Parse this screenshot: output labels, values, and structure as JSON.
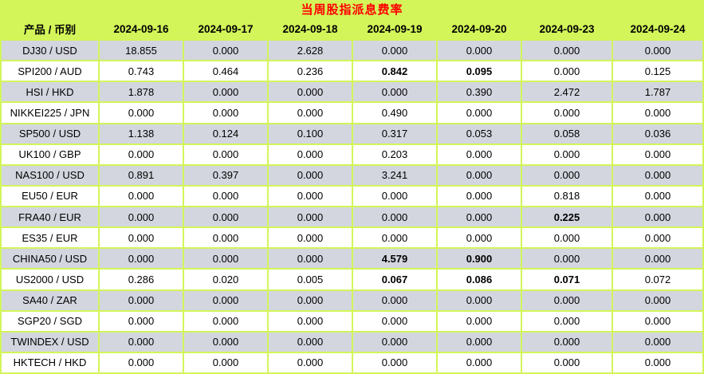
{
  "title": "当周股指派息费率",
  "colors": {
    "background": "#d3f559",
    "row_base": "#ffffff",
    "row_alt": "#d3d6df",
    "title_text": "#ff0000",
    "text": "#000000"
  },
  "table": {
    "corner_header": "产品 / 币别",
    "date_headers": [
      "2024-09-16",
      "2024-09-17",
      "2024-09-18",
      "2024-09-19",
      "2024-09-20",
      "2024-09-23",
      "2024-09-24"
    ],
    "rows": [
      {
        "product": "DJ30 / USD",
        "values": [
          "18.855",
          "0.000",
          "2.628",
          "0.000",
          "0.000",
          "0.000",
          "0.000"
        ],
        "bold_cols": []
      },
      {
        "product": "SPI200 / AUD",
        "values": [
          "0.743",
          "0.464",
          "0.236",
          "0.842",
          "0.095",
          "0.000",
          "0.125"
        ],
        "bold_cols": [
          3,
          4
        ]
      },
      {
        "product": "HSI / HKD",
        "values": [
          "1.878",
          "0.000",
          "0.000",
          "0.000",
          "0.390",
          "2.472",
          "1.787"
        ],
        "bold_cols": []
      },
      {
        "product": "NIKKEI225 / JPN",
        "values": [
          "0.000",
          "0.000",
          "0.000",
          "0.490",
          "0.000",
          "0.000",
          "0.000"
        ],
        "bold_cols": []
      },
      {
        "product": "SP500 / USD",
        "values": [
          "1.138",
          "0.124",
          "0.100",
          "0.317",
          "0.053",
          "0.058",
          "0.036"
        ],
        "bold_cols": []
      },
      {
        "product": "UK100 / GBP",
        "values": [
          "0.000",
          "0.000",
          "0.000",
          "0.203",
          "0.000",
          "0.000",
          "0.000"
        ],
        "bold_cols": []
      },
      {
        "product": "NAS100 / USD",
        "values": [
          "0.891",
          "0.397",
          "0.000",
          "3.241",
          "0.000",
          "0.000",
          "0.000"
        ],
        "bold_cols": []
      },
      {
        "product": "EU50 / EUR",
        "values": [
          "0.000",
          "0.000",
          "0.000",
          "0.000",
          "0.000",
          "0.818",
          "0.000"
        ],
        "bold_cols": []
      },
      {
        "product": "FRA40 / EUR",
        "values": [
          "0.000",
          "0.000",
          "0.000",
          "0.000",
          "0.000",
          "0.225",
          "0.000"
        ],
        "bold_cols": [
          5
        ]
      },
      {
        "product": "ES35 / EUR",
        "values": [
          "0.000",
          "0.000",
          "0.000",
          "0.000",
          "0.000",
          "0.000",
          "0.000"
        ],
        "bold_cols": []
      },
      {
        "product": "CHINA50 / USD",
        "values": [
          "0.000",
          "0.000",
          "0.000",
          "4.579",
          "0.900",
          "0.000",
          "0.000"
        ],
        "bold_cols": [
          3,
          4
        ]
      },
      {
        "product": "US2000 / USD",
        "values": [
          "0.286",
          "0.020",
          "0.005",
          "0.067",
          "0.086",
          "0.071",
          "0.072"
        ],
        "bold_cols": [
          3,
          4,
          5
        ]
      },
      {
        "product": "SA40 / ZAR",
        "values": [
          "0.000",
          "0.000",
          "0.000",
          "0.000",
          "0.000",
          "0.000",
          "0.000"
        ],
        "bold_cols": []
      },
      {
        "product": "SGP20 / SGD",
        "values": [
          "0.000",
          "0.000",
          "0.000",
          "0.000",
          "0.000",
          "0.000",
          "0.000"
        ],
        "bold_cols": []
      },
      {
        "product": "TWINDEX / USD",
        "values": [
          "0.000",
          "0.000",
          "0.000",
          "0.000",
          "0.000",
          "0.000",
          "0.000"
        ],
        "bold_cols": []
      },
      {
        "product": "HKTECH / HKD",
        "values": [
          "0.000",
          "0.000",
          "0.000",
          "0.000",
          "0.000",
          "0.000",
          "0.000"
        ],
        "bold_cols": []
      }
    ]
  },
  "chart_data": {
    "type": "table",
    "title": "当周股指派息费率",
    "columns": [
      "产品 / 币别",
      "2024-09-16",
      "2024-09-17",
      "2024-09-18",
      "2024-09-19",
      "2024-09-20",
      "2024-09-23",
      "2024-09-24"
    ],
    "rows": [
      [
        "DJ30 / USD",
        18.855,
        0.0,
        2.628,
        0.0,
        0.0,
        0.0,
        0.0
      ],
      [
        "SPI200 / AUD",
        0.743,
        0.464,
        0.236,
        0.842,
        0.095,
        0.0,
        0.125
      ],
      [
        "HSI / HKD",
        1.878,
        0.0,
        0.0,
        0.0,
        0.39,
        2.472,
        1.787
      ],
      [
        "NIKKEI225 / JPN",
        0.0,
        0.0,
        0.0,
        0.49,
        0.0,
        0.0,
        0.0
      ],
      [
        "SP500 / USD",
        1.138,
        0.124,
        0.1,
        0.317,
        0.053,
        0.058,
        0.036
      ],
      [
        "UK100 / GBP",
        0.0,
        0.0,
        0.0,
        0.203,
        0.0,
        0.0,
        0.0
      ],
      [
        "NAS100 / USD",
        0.891,
        0.397,
        0.0,
        3.241,
        0.0,
        0.0,
        0.0
      ],
      [
        "EU50 / EUR",
        0.0,
        0.0,
        0.0,
        0.0,
        0.0,
        0.818,
        0.0
      ],
      [
        "FRA40 / EUR",
        0.0,
        0.0,
        0.0,
        0.0,
        0.0,
        0.225,
        0.0
      ],
      [
        "ES35 / EUR",
        0.0,
        0.0,
        0.0,
        0.0,
        0.0,
        0.0,
        0.0
      ],
      [
        "CHINA50 / USD",
        0.0,
        0.0,
        0.0,
        4.579,
        0.9,
        0.0,
        0.0
      ],
      [
        "US2000 / USD",
        0.286,
        0.02,
        0.005,
        0.067,
        0.086,
        0.071,
        0.072
      ],
      [
        "SA40 / ZAR",
        0.0,
        0.0,
        0.0,
        0.0,
        0.0,
        0.0,
        0.0
      ],
      [
        "SGP20 / SGD",
        0.0,
        0.0,
        0.0,
        0.0,
        0.0,
        0.0,
        0.0
      ],
      [
        "TWINDEX / USD",
        0.0,
        0.0,
        0.0,
        0.0,
        0.0,
        0.0,
        0.0
      ],
      [
        "HKTECH / HKD",
        0.0,
        0.0,
        0.0,
        0.0,
        0.0,
        0.0,
        0.0
      ]
    ],
    "bold_cells": [
      [
        "SPI200 / AUD",
        "2024-09-19"
      ],
      [
        "SPI200 / AUD",
        "2024-09-20"
      ],
      [
        "FRA40 / EUR",
        "2024-09-23"
      ],
      [
        "CHINA50 / USD",
        "2024-09-19"
      ],
      [
        "CHINA50 / USD",
        "2024-09-20"
      ],
      [
        "US2000 / USD",
        "2024-09-19"
      ],
      [
        "US2000 / USD",
        "2024-09-20"
      ],
      [
        "US2000 / USD",
        "2024-09-23"
      ]
    ],
    "layout": "alternating row shading (gray/white) on chartreuse background; header row bold; title centered in red"
  }
}
